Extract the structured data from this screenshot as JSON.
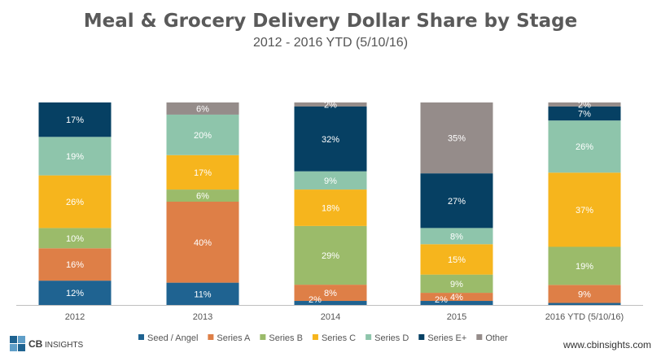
{
  "chart_data": {
    "type": "bar",
    "stacked": true,
    "title": "Meal & Grocery Delivery Dollar Share by Stage",
    "subtitle": "2012 - 2016 YTD (5/10/16)",
    "categories": [
      "2012",
      "2013",
      "2014",
      "2015",
      "2016 YTD (5/10/16)"
    ],
    "ylim": [
      0,
      100
    ],
    "grid": false,
    "legend_position": "bottom",
    "series": [
      {
        "name": "Seed / Angel",
        "color": "#1f6391",
        "label_color": "#ffffff",
        "values": [
          12,
          11,
          2,
          2,
          1
        ],
        "labels": [
          "12%",
          "11%",
          "",
          "",
          ""
        ]
      },
      {
        "name": "Series A",
        "color": "#de7f47",
        "label_color": "#ffffff",
        "values": [
          16,
          40,
          8,
          4,
          9
        ],
        "labels": [
          "16%",
          "40%",
          "8%",
          "4%",
          "9%"
        ]
      },
      {
        "name": "Series B",
        "color": "#9bbb6a",
        "label_color": "#ffffff",
        "values": [
          10,
          6,
          29,
          9,
          19
        ],
        "labels": [
          "10%",
          "6%",
          "29%",
          "9%",
          "19%"
        ]
      },
      {
        "name": "Series C",
        "color": "#f6b51d",
        "label_color": "#ffffff",
        "values": [
          26,
          17,
          18,
          15,
          37
        ],
        "labels": [
          "26%",
          "17%",
          "18%",
          "15%",
          "37%"
        ]
      },
      {
        "name": "Series D",
        "color": "#8ec5ab",
        "label_color": "#ffffff",
        "values": [
          19,
          20,
          9,
          8,
          26
        ],
        "labels": [
          "19%",
          "20%",
          "9%",
          "8%",
          "26%"
        ]
      },
      {
        "name": "Series E+",
        "color": "#064063",
        "label_color": "#ffffff",
        "values": [
          17,
          0,
          32,
          27,
          7
        ],
        "labels": [
          "17%",
          "",
          "32%",
          "27%",
          "7%"
        ]
      },
      {
        "name": "Other",
        "color": "#958c8a",
        "label_color": "#ffffff",
        "values": [
          0,
          6,
          2,
          35,
          2
        ],
        "labels": [
          "",
          "6%",
          "2%",
          "35%",
          "2%"
        ]
      }
    ],
    "annotations": [
      {
        "category": 2,
        "series": 0,
        "text": "2%",
        "color": "#ffffff"
      },
      {
        "category": 3,
        "series": 0,
        "text": "2%",
        "color": "#ffffff"
      }
    ]
  },
  "logo": {
    "cb": "CB",
    "insights": "INSIGHTS"
  },
  "footer": {
    "url": "www.cbinsights.com"
  }
}
